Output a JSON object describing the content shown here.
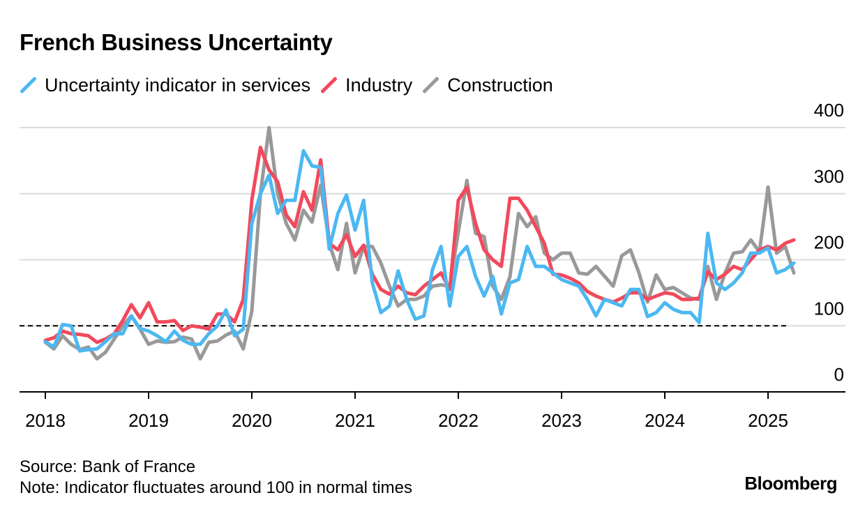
{
  "header": {
    "title": "French Business Uncertainty"
  },
  "legend": [
    {
      "label": "Uncertainty indicator in services",
      "color": "#4cb8f2"
    },
    {
      "label": "Industry",
      "color": "#f2495c"
    },
    {
      "label": "Construction",
      "color": "#999999"
    }
  ],
  "footer": {
    "source": "Source: Bank of France",
    "note": "Note: Indicator fluctuates around 100 in normal times"
  },
  "brand": "Bloomberg",
  "chart_data": {
    "type": "line",
    "title": "French Business Uncertainty",
    "xlabel": "",
    "ylabel": "",
    "x_ticks": [
      "2018",
      "2019",
      "2020",
      "2021",
      "2022",
      "2023",
      "2024",
      "2025"
    ],
    "y_ticks": [
      0,
      100,
      200,
      300,
      400
    ],
    "ylim": [
      0,
      400
    ],
    "xlim": [
      "2017-10",
      "2025-10"
    ],
    "grid": true,
    "reference_line": {
      "y": 100,
      "style": "dashed"
    },
    "x_start": "2018-01",
    "x_step": "month",
    "series": [
      {
        "name": "Uncertainty indicator in services",
        "color": "#4cb8f2",
        "values": [
          76,
          68,
          102,
          100,
          62,
          64,
          65,
          76,
          88,
          88,
          115,
          96,
          92,
          85,
          76,
          92,
          78,
          72,
          72,
          88,
          100,
          124,
          85,
          95,
          255,
          300,
          328,
          270,
          290,
          290,
          365,
          342,
          340,
          216,
          270,
          298,
          245,
          290,
          165,
          120,
          130,
          183,
          140,
          110,
          115,
          185,
          220,
          130,
          205,
          220,
          175,
          145,
          175,
          118,
          165,
          170,
          220,
          190,
          190,
          180,
          170,
          165,
          160,
          140,
          115,
          140,
          135,
          130,
          155,
          155,
          114,
          120,
          135,
          125,
          120,
          120,
          105,
          240,
          165,
          155,
          165,
          180,
          210,
          210,
          218,
          180,
          185,
          195
        ]
      },
      {
        "name": "Industry",
        "color": "#f2495c",
        "values": [
          78,
          82,
          92,
          88,
          87,
          85,
          75,
          80,
          88,
          108,
          132,
          112,
          135,
          106,
          106,
          108,
          93,
          100,
          98,
          95,
          118,
          118,
          106,
          140,
          290,
          370,
          336,
          318,
          268,
          250,
          303,
          275,
          351,
          225,
          215,
          238,
          205,
          222,
          178,
          155,
          148,
          160,
          150,
          147,
          160,
          170,
          180,
          155,
          290,
          310,
          255,
          215,
          200,
          190,
          293,
          293,
          275,
          250,
          225,
          178,
          177,
          172,
          165,
          152,
          145,
          140,
          136,
          142,
          150,
          150,
          140,
          145,
          150,
          148,
          140,
          140,
          142,
          182,
          170,
          178,
          190,
          185,
          200,
          215,
          220,
          215,
          225,
          230
        ]
      },
      {
        "name": "Construction",
        "color": "#999999",
        "values": [
          75,
          65,
          85,
          72,
          64,
          68,
          50,
          60,
          80,
          100,
          115,
          95,
          72,
          77,
          75,
          76,
          83,
          80,
          50,
          75,
          77,
          86,
          92,
          65,
          122,
          300,
          400,
          300,
          255,
          230,
          275,
          257,
          313,
          225,
          185,
          255,
          180,
          220,
          220,
          195,
          160,
          130,
          140,
          140,
          145,
          160,
          162,
          160,
          242,
          320,
          240,
          235,
          160,
          140,
          174,
          270,
          250,
          265,
          210,
          200,
          210,
          210,
          180,
          178,
          190,
          175,
          160,
          206,
          215,
          180,
          136,
          177,
          155,
          158,
          150,
          142,
          140,
          190,
          140,
          180,
          210,
          212,
          230,
          212,
          310,
          210,
          220,
          180
        ]
      }
    ]
  }
}
